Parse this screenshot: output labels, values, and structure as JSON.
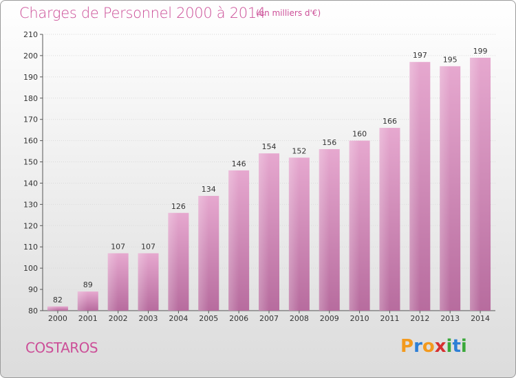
{
  "header": {
    "title": "Charges de Personnel 2000 à 2014",
    "subtitle": "(en milliers d'€)"
  },
  "footer": {
    "city": "COSTAROS",
    "logo": "Proxiti"
  },
  "colors": {
    "accent": "#cc4f98",
    "bar_top": "#e6a8cf",
    "bar_bottom": "#b76c9e"
  },
  "chart_data": {
    "type": "bar",
    "categories": [
      "2000",
      "2001",
      "2002",
      "2003",
      "2004",
      "2005",
      "2006",
      "2007",
      "2008",
      "2009",
      "2010",
      "2011",
      "2012",
      "2013",
      "2014"
    ],
    "values": [
      82,
      89,
      107,
      107,
      126,
      134,
      146,
      154,
      152,
      156,
      160,
      166,
      197,
      195,
      199
    ],
    "title": "Charges de Personnel 2000 à 2014",
    "subtitle": "(en milliers d'€)",
    "xlabel": "",
    "ylabel": "",
    "ylim": [
      80,
      210
    ],
    "yticks": [
      80,
      90,
      100,
      110,
      120,
      130,
      140,
      150,
      160,
      170,
      180,
      190,
      200,
      210
    ],
    "grid": true,
    "data_labels": true
  }
}
